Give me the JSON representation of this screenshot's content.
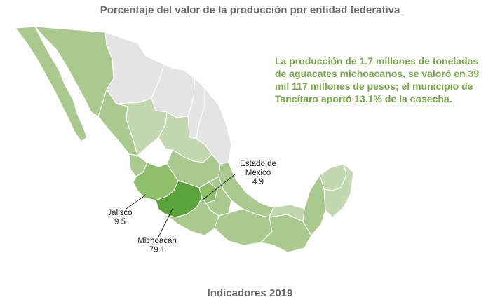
{
  "title": "Porcentaje del valor de la producción por entidad federativa",
  "info_text": "La producción de 1.7 millones de toneladas de aguacates michoacanos, se valoró en 39 mil 117 millones de pesos; el municipio de Tancítaro aportó 13.1% de la cosecha.",
  "colors": {
    "michoacan": "#5aa33a",
    "neighbors": "#8fbf6a",
    "producers": "#a9c98e",
    "producers_light": "#c3d7b0",
    "non_producers": "#e4e4e4",
    "info_text": "#78a84a"
  },
  "states": [
    {
      "name": "Estado de México",
      "value": "4.9"
    },
    {
      "name": "Jalisco",
      "value": "9.5"
    },
    {
      "name": "Michoacán",
      "value": "79.1"
    }
  ],
  "footer": "Indicadores 2019"
}
